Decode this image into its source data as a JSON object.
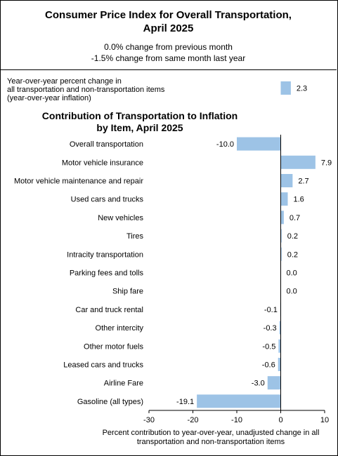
{
  "header": {
    "title_line1": "Consumer Price Index for Overall Transportation,",
    "title_line2": "April 2025",
    "change_monthly": "0.0% change from previous month",
    "change_yearly": "-1.5% change from same month last year"
  },
  "yoy": {
    "label_lines": [
      "Year-over-year percent change in",
      "all transportation and non-transportation items",
      "(year-over-year inflation)"
    ],
    "value": 2.3
  },
  "colors": {
    "bar": "#9dc3e6",
    "axis": "#000000"
  },
  "chart_data": {
    "type": "bar",
    "orientation": "horizontal",
    "title_line1": "Contribution of Transportation to Inflation",
    "title_line2": "by Item, April 2025",
    "categories": [
      "Overall transportation",
      "Motor vehicle insurance",
      "Motor vehicle maintenance and repair",
      "Used cars and trucks",
      "New vehicles",
      "Tires",
      "Intracity transportation",
      "Parking fees and tolls",
      "Ship fare",
      "Car and truck rental",
      "Other intercity",
      "Other motor fuels",
      "Leased cars and trucks",
      "Airline Fare",
      "Gasoline (all types)"
    ],
    "values": [
      -10.0,
      7.9,
      2.7,
      1.6,
      0.7,
      0.2,
      0.2,
      0.0,
      0.0,
      -0.1,
      -0.3,
      -0.5,
      -0.6,
      -3.0,
      -19.1
    ],
    "xlim": [
      -30,
      10
    ],
    "xticks": [
      -30,
      -20,
      -10,
      0,
      10
    ],
    "xlabel_line1": "Percent contribution to year-over-year,  unadjusted change in all",
    "xlabel_line2": "transportation and non-transportation items",
    "grid": false,
    "legend": "none"
  }
}
